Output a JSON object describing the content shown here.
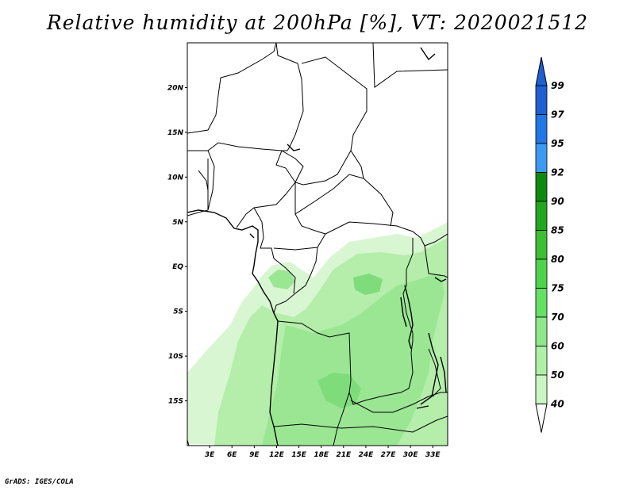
{
  "title": "Relative humidity at 200hPa [%], VT: 2020021512",
  "credit": "GrADS: IGES/COLA",
  "map": {
    "lat_labels": [
      "20N",
      "15N",
      "10N",
      "5N",
      "EQ",
      "5S",
      "10S",
      "15S"
    ],
    "lat_values": [
      20,
      15,
      10,
      5,
      0,
      -5,
      -10,
      -15
    ],
    "lon_labels": [
      "3E",
      "6E",
      "9E",
      "12E",
      "15E",
      "18E",
      "21E",
      "24E",
      "27E",
      "30E",
      "33E"
    ],
    "lon_values": [
      3,
      6,
      9,
      12,
      15,
      18,
      21,
      24,
      27,
      30,
      33
    ],
    "lon_range": [
      0,
      35
    ],
    "lat_range": [
      -20,
      25
    ]
  },
  "colorbar": {
    "labels": [
      "99",
      "97",
      "95",
      "92",
      "90",
      "85",
      "80",
      "75",
      "70",
      "60",
      "50",
      "40"
    ],
    "colors": [
      "#1e5fd2",
      "#2277e6",
      "#3d9af2",
      "#0f8a10",
      "#22a81e",
      "#3cbf32",
      "#4ed44a",
      "#64e064",
      "#8ee88a",
      "#aef0a6",
      "#c9f6c2",
      "#e4fbe0"
    ],
    "top_arrow_color": "#1e5fd2",
    "bottom_arrow_color": "#ffffff"
  }
}
